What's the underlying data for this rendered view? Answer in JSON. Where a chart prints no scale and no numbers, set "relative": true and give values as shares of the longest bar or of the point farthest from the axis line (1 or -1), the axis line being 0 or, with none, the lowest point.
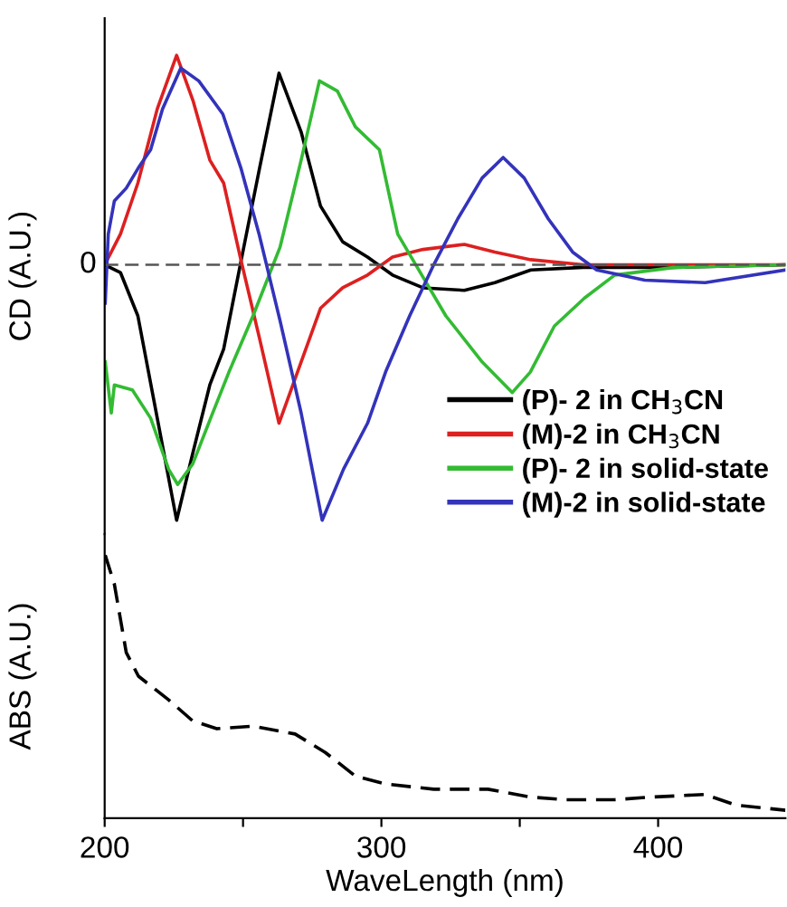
{
  "chart_data": [
    {
      "type": "line",
      "relative": true,
      "ylabel": "CD (A.U.)",
      "xlim": [
        200,
        446
      ],
      "tick_labels": false,
      "legend": "bottom right",
      "line_style": "solid",
      "ref_lines": [
        {
          "axis": "y",
          "value": 0,
          "label": "0",
          "color": "#555555",
          "line_style": "dashed"
        }
      ],
      "series": [
        {
          "name": "(P)- 2 in CH$_{3}$CN",
          "color": "#000000",
          "x": [
            200,
            205.7,
            212,
            219,
            226,
            232,
            238,
            243,
            249,
            256,
            263,
            271,
            278,
            286,
            295,
            304,
            315,
            330,
            341,
            354,
            373,
            406,
            446
          ],
          "values": [
            0,
            -0.03,
            -0.2,
            -0.6,
            -1.0,
            -0.73,
            -0.47,
            -0.33,
            0.0,
            0.38,
            0.75,
            0.52,
            0.23,
            0.09,
            0.03,
            -0.04,
            -0.09,
            -0.1,
            -0.07,
            -0.02,
            -0.01,
            -0.01,
            0
          ]
        },
        {
          "name": "(M)-2 in CH$_{3}$CN",
          "color": "#dd2020",
          "x": [
            200,
            205.7,
            212,
            219,
            226,
            232,
            238,
            243,
            249,
            256,
            263,
            271,
            278,
            286,
            295,
            304,
            315,
            330,
            341,
            354,
            373,
            406,
            446
          ],
          "values": [
            0,
            0.12,
            0.32,
            0.61,
            0.82,
            0.64,
            0.41,
            0.32,
            0.03,
            -0.29,
            -0.62,
            -0.38,
            -0.17,
            -0.09,
            -0.04,
            0.03,
            0.06,
            0.08,
            0.05,
            0.02,
            0.0,
            0.0,
            0.0
          ]
        },
        {
          "name": "(P)- 2 in solid-state",
          "color": "#33bb33",
          "x": [
            200.2,
            202.4,
            203.5,
            210,
            216.6,
            223.1,
            226.4,
            231.8,
            238.3,
            244.9,
            253.6,
            263.4,
            271,
            277.6,
            284.1,
            290.6,
            299.3,
            305.9,
            314.6,
            323.3,
            336.4,
            347.3,
            353.8,
            362.5,
            373.4,
            384.3,
            406,
            446
          ],
          "values": [
            -0.38,
            -0.58,
            -0.47,
            -0.49,
            -0.6,
            -0.8,
            -0.86,
            -0.78,
            -0.6,
            -0.42,
            -0.2,
            0.07,
            0.41,
            0.72,
            0.68,
            0.54,
            0.45,
            0.12,
            -0.04,
            -0.2,
            -0.38,
            -0.5,
            -0.42,
            -0.24,
            -0.13,
            -0.04,
            -0.01,
            0
          ]
        },
        {
          "name": "(M)-2 in solid-state",
          "color": "#3333bb",
          "x": [
            200.2,
            201.3,
            203.5,
            207.8,
            212.2,
            216.6,
            220.9,
            227.5,
            234,
            242.7,
            249.2,
            255.8,
            263.4,
            271,
            278.6,
            286.3,
            295,
            301.5,
            310.2,
            318.9,
            327.6,
            336.4,
            344,
            351.6,
            360.3,
            369.1,
            377.8,
            395.2,
            417,
            446
          ],
          "values": [
            -0.15,
            0.12,
            0.25,
            0.3,
            0.38,
            0.45,
            0.61,
            0.77,
            0.72,
            0.59,
            0.38,
            0.12,
            -0.22,
            -0.58,
            -1.0,
            -0.8,
            -0.62,
            -0.42,
            -0.2,
            0.0,
            0.18,
            0.34,
            0.42,
            0.34,
            0.18,
            0.05,
            -0.02,
            -0.06,
            -0.07,
            -0.02
          ]
        }
      ]
    },
    {
      "type": "line",
      "relative": true,
      "ylabel": "ABS (A.U.)",
      "xlabel": "WaveLength (nm)",
      "xlim": [
        200,
        446
      ],
      "xticks": [
        200,
        {
          "value": 250,
          "label": null
        },
        300,
        {
          "value": 350,
          "label": null
        },
        400
      ],
      "tick_labels": "x",
      "line_style": "dashed",
      "series": [
        {
          "color": "#000000",
          "x": [
            200.2,
            203.5,
            207.8,
            212.2,
            223.1,
            231.8,
            240.5,
            253.6,
            268.8,
            279.7,
            290.6,
            301.5,
            318.9,
            338.5,
            353.8,
            366.8,
            384.3,
            397.4,
            417,
            427.9,
            446
          ],
          "values": [
            1.0,
            0.89,
            0.63,
            0.54,
            0.45,
            0.37,
            0.34,
            0.35,
            0.32,
            0.25,
            0.16,
            0.13,
            0.11,
            0.11,
            0.08,
            0.07,
            0.07,
            0.08,
            0.09,
            0.05,
            0.03
          ]
        }
      ]
    }
  ]
}
